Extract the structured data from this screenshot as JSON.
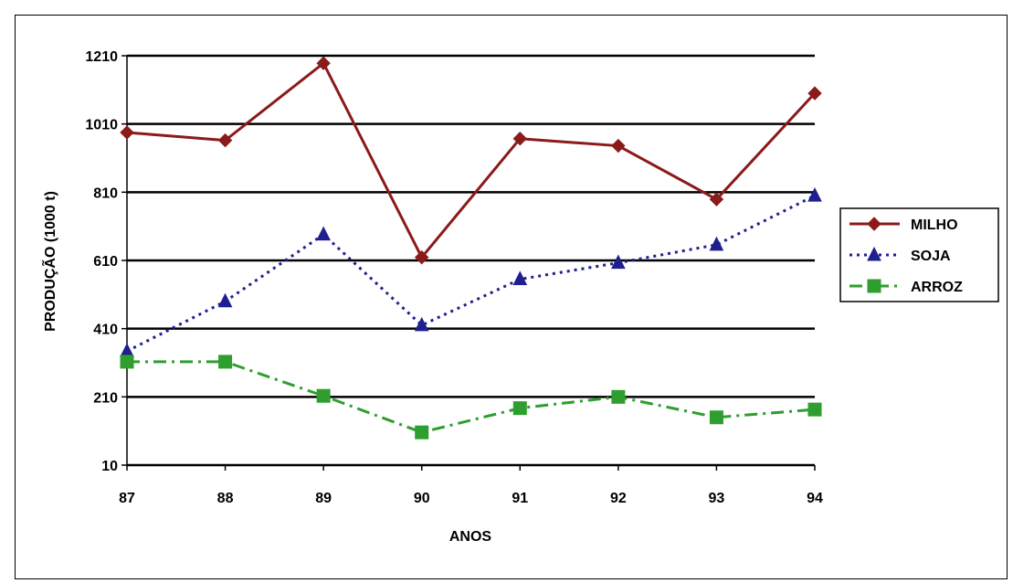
{
  "chart_data": {
    "type": "line",
    "title": "",
    "xlabel": "ANOS",
    "ylabel": "PRODUÇÃO (1000 t)",
    "categories": [
      "87",
      "88",
      "89",
      "90",
      "91",
      "92",
      "93",
      "94"
    ],
    "yticks": [
      "10",
      "210",
      "410",
      "610",
      "810",
      "1010",
      "1210"
    ],
    "ylim": [
      10,
      1210
    ],
    "grid": "horizontal",
    "legend_position": "right",
    "series": [
      {
        "name": "MILHO",
        "color": "#8B1A1A",
        "line_style": "solid",
        "marker": "diamond",
        "values": [
          985,
          962,
          1188,
          619,
          967,
          946,
          789,
          1100
        ]
      },
      {
        "name": "SOJA",
        "color": "#1F1F8F",
        "line_style": "dotted",
        "marker": "triangle",
        "values": [
          344,
          490,
          686,
          420,
          555,
          603,
          656,
          800
        ]
      },
      {
        "name": "ARROZ",
        "color": "#2E9E2E",
        "line_style": "dash-dot",
        "marker": "square",
        "values": [
          313,
          313,
          213,
          106,
          177,
          210,
          150,
          173
        ]
      }
    ]
  }
}
